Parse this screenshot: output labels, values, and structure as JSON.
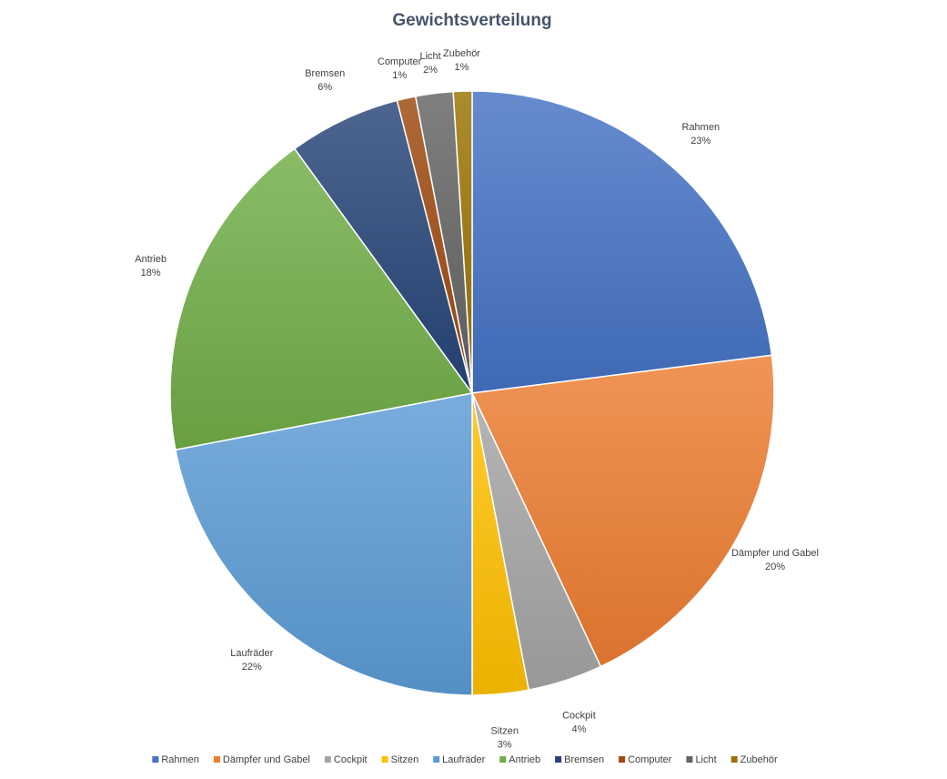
{
  "chart_data": {
    "type": "pie",
    "title": "Gewichtsverteilung",
    "categories": [
      "Rahmen",
      "Dämpfer und Gabel",
      "Cockpit",
      "Sitzen",
      "Laufräder",
      "Antrieb",
      "Bremsen",
      "Computer",
      "Licht",
      "Zubehör"
    ],
    "values": [
      23,
      20,
      4,
      3,
      22,
      18,
      6,
      1,
      2,
      1
    ],
    "percent_labels": [
      "23%",
      "20%",
      "4%",
      "3%",
      "22%",
      "18%",
      "6%",
      "1%",
      "2%",
      "1%"
    ],
    "colors": [
      "#4472c4",
      "#ed7d31",
      "#a5a5a5",
      "#ffc000",
      "#5b9bd5",
      "#70ad47",
      "#264478",
      "#9e480e",
      "#636363",
      "#997300"
    ],
    "legend_position": "bottom",
    "grid": false
  }
}
